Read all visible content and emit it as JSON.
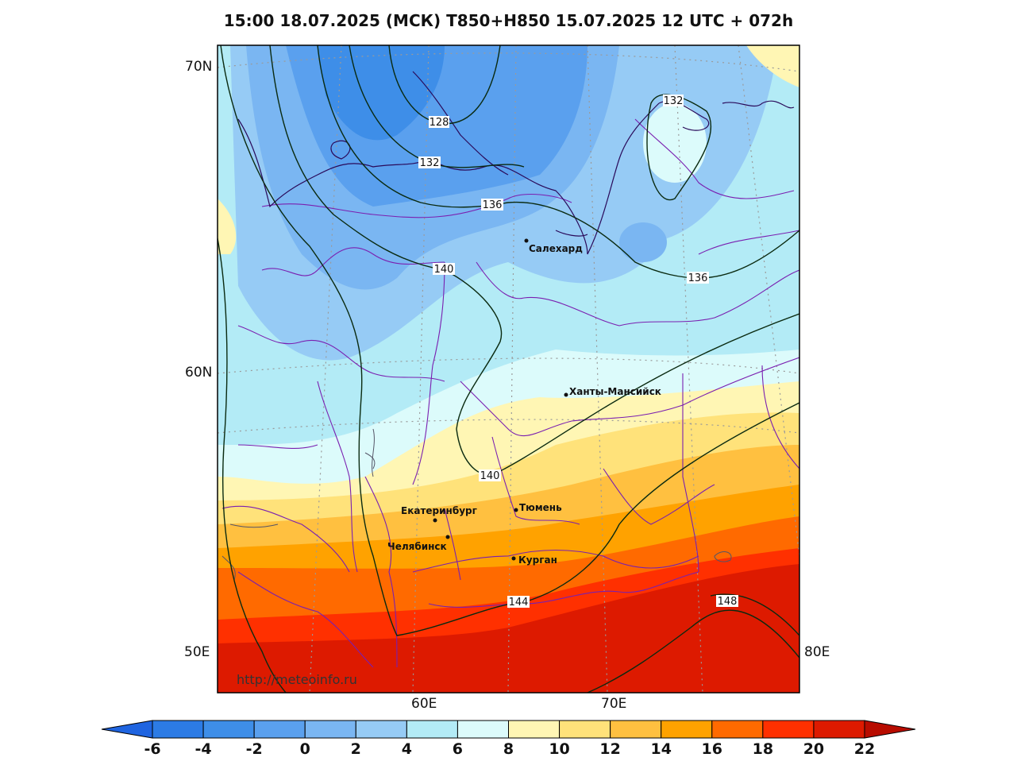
{
  "title": "15:00 18.07.2025 (МСК) T850+H850 15.07.2025 12 UTC + 072h",
  "watermark": "http://meteoinfo.ru",
  "lat_labels": [
    "70N",
    "60N"
  ],
  "lon_labels_side": [
    "50E",
    "80E"
  ],
  "lon_labels_bottom": [
    "60E",
    "70E"
  ],
  "cities": [
    {
      "name": "Салехард"
    },
    {
      "name": "Ханты-Мансийск"
    },
    {
      "name": "Екатеринбург"
    },
    {
      "name": "Тюмень"
    },
    {
      "name": "Челябинск"
    },
    {
      "name": "Курган"
    }
  ],
  "contour_labels": [
    "128",
    "132",
    "136",
    "140",
    "136",
    "140",
    "144",
    "148",
    "132"
  ],
  "colorbar": {
    "ticks": [
      "-6",
      "-4",
      "-2",
      "0",
      "2",
      "4",
      "6",
      "8",
      "10",
      "12",
      "14",
      "16",
      "18",
      "20",
      "22"
    ],
    "colors": [
      "#2c7be5",
      "#3e8ee8",
      "#5aa0ee",
      "#7ab6f2",
      "#96cbf5",
      "#b3ebf6",
      "#dcfbfb",
      "#fff6b4",
      "#ffe27a",
      "#ffc040",
      "#ffa200",
      "#ff6a00",
      "#ff3000",
      "#dd1a00"
    ],
    "under_color": "#1f64e0",
    "over_color": "#b80c00"
  }
}
